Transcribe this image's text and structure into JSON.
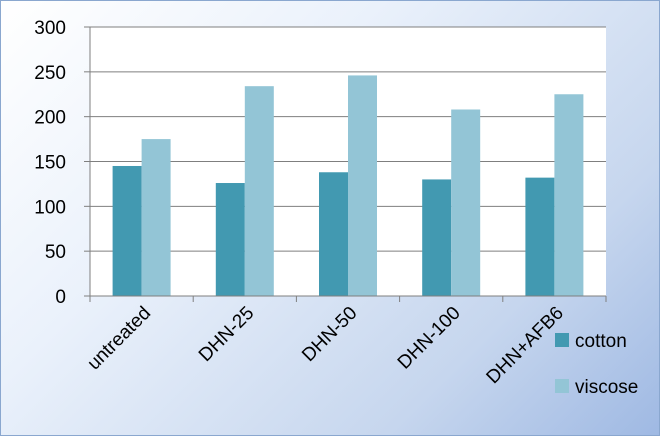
{
  "chart_data": {
    "type": "bar",
    "title": "",
    "xlabel": "",
    "ylabel": "",
    "categories": [
      "untreated",
      "DHN-25",
      "DHN-50",
      "DHN-100",
      "DHN+AFB6"
    ],
    "series": [
      {
        "name": "cotton",
        "color": "#4299b1",
        "values": [
          145,
          126,
          138,
          130,
          132
        ]
      },
      {
        "name": "viscose",
        "color": "#93c5d6",
        "values": [
          175,
          234,
          246,
          208,
          225
        ]
      }
    ],
    "ylim": [
      0,
      300
    ],
    "yticks": [
      0,
      50,
      100,
      150,
      200,
      250,
      300
    ],
    "grid": true,
    "legend_position": "right"
  }
}
